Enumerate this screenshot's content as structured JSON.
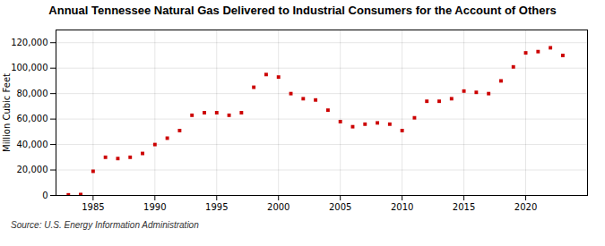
{
  "chart_data": {
    "type": "scatter",
    "title": "Annual Tennessee Natural Gas Delivered to Industrial Consumers for the Account of Others",
    "ylabel": "Million Cubic Feet",
    "source": "Source: U.S. Energy Information Administration",
    "x": [
      1983,
      1984,
      1984,
      1985,
      1986,
      1987,
      1988,
      1989,
      1990,
      1991,
      1992,
      1993,
      1994,
      1995,
      1996,
      1997,
      1998,
      1999,
      2000,
      2001,
      2002,
      2003,
      2004,
      2005,
      2006,
      2007,
      2008,
      2009,
      2010,
      2011,
      2012,
      2013,
      2014,
      2015,
      2016,
      2017,
      2018,
      2019,
      2020,
      2021,
      2022,
      2023
    ],
    "values": [
      500,
      500,
      700,
      19000,
      30000,
      29000,
      30000,
      33000,
      40000,
      45000,
      51000,
      63000,
      65000,
      65000,
      63000,
      65000,
      85000,
      95000,
      93000,
      80000,
      76000,
      75000,
      67000,
      58000,
      54000,
      56000,
      57000,
      56000,
      51000,
      61000,
      74000,
      74000,
      76000,
      82000,
      81000,
      80000,
      90000,
      101000,
      112000,
      113000,
      116000,
      110000
    ],
    "color": "#cc0000",
    "marker": "square",
    "xlim": [
      1982,
      2025
    ],
    "ylim": [
      0,
      130000
    ],
    "xticks": [
      1985,
      1990,
      1995,
      2000,
      2005,
      2010,
      2015,
      2020
    ],
    "yticks": [
      0,
      {
        "value": 20000,
        "label": "20,000"
      },
      {
        "value": 40000,
        "label": "40,000"
      },
      {
        "value": 60000,
        "label": "60,000"
      },
      {
        "value": 80000,
        "label": "80,000"
      },
      {
        "value": 100000,
        "label": "100,000"
      },
      {
        "value": 120000,
        "label": "120,000"
      }
    ],
    "grid": true
  }
}
